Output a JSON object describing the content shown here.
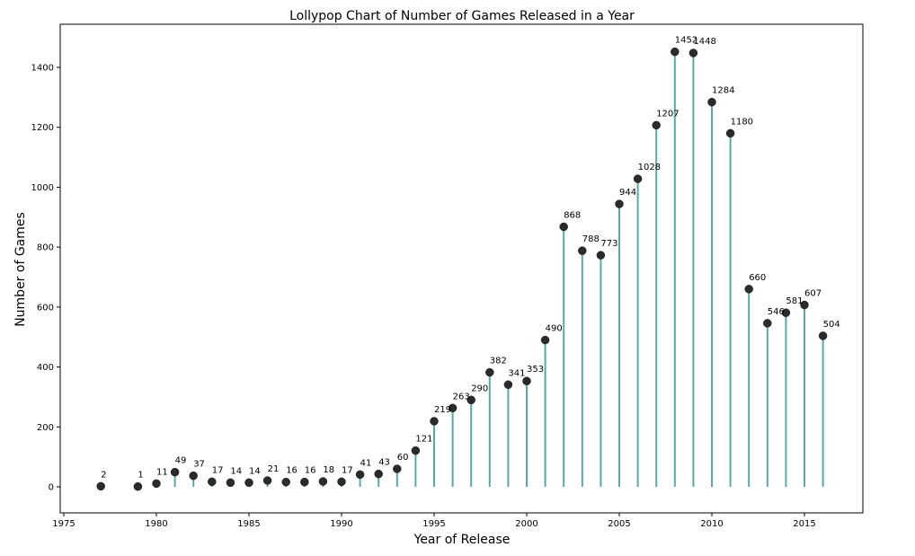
{
  "chart_data": {
    "type": "lollipop",
    "title": "Lollypop Chart of Number of Games Released in a Year",
    "xlabel": "Year of Release",
    "ylabel": "Number of Games",
    "xlim": [
      1975,
      2018
    ],
    "ylim": [
      -90,
      1540
    ],
    "xticks": [
      1975,
      1980,
      1985,
      1990,
      1995,
      2000,
      2005,
      2010,
      2015
    ],
    "yticks": [
      0,
      200,
      400,
      600,
      800,
      1000,
      1200,
      1400
    ],
    "grid": false,
    "stem_color": "#5aa9a5",
    "marker_color": "#2b2b2b",
    "points": [
      {
        "x": 1977,
        "y": 2
      },
      {
        "x": 1979,
        "y": 1
      },
      {
        "x": 1980,
        "y": 11
      },
      {
        "x": 1981,
        "y": 49
      },
      {
        "x": 1982,
        "y": 37
      },
      {
        "x": 1983,
        "y": 17
      },
      {
        "x": 1984,
        "y": 14
      },
      {
        "x": 1985,
        "y": 14
      },
      {
        "x": 1986,
        "y": 21
      },
      {
        "x": 1987,
        "y": 16
      },
      {
        "x": 1988,
        "y": 16
      },
      {
        "x": 1989,
        "y": 18
      },
      {
        "x": 1990,
        "y": 17
      },
      {
        "x": 1991,
        "y": 41
      },
      {
        "x": 1992,
        "y": 43
      },
      {
        "x": 1993,
        "y": 60
      },
      {
        "x": 1994,
        "y": 121
      },
      {
        "x": 1995,
        "y": 219
      },
      {
        "x": 1996,
        "y": 263
      },
      {
        "x": 1997,
        "y": 290
      },
      {
        "x": 1998,
        "y": 382
      },
      {
        "x": 1999,
        "y": 341
      },
      {
        "x": 2000,
        "y": 353
      },
      {
        "x": 2001,
        "y": 490
      },
      {
        "x": 2002,
        "y": 868
      },
      {
        "x": 2003,
        "y": 788
      },
      {
        "x": 2004,
        "y": 773
      },
      {
        "x": 2005,
        "y": 944
      },
      {
        "x": 2006,
        "y": 1028
      },
      {
        "x": 2007,
        "y": 1207
      },
      {
        "x": 2008,
        "y": 1452
      },
      {
        "x": 2009,
        "y": 1448
      },
      {
        "x": 2010,
        "y": 1284
      },
      {
        "x": 2011,
        "y": 1180
      },
      {
        "x": 2012,
        "y": 660
      },
      {
        "x": 2013,
        "y": 546
      },
      {
        "x": 2014,
        "y": 581
      },
      {
        "x": 2015,
        "y": 607
      },
      {
        "x": 2016,
        "y": 504
      }
    ]
  }
}
